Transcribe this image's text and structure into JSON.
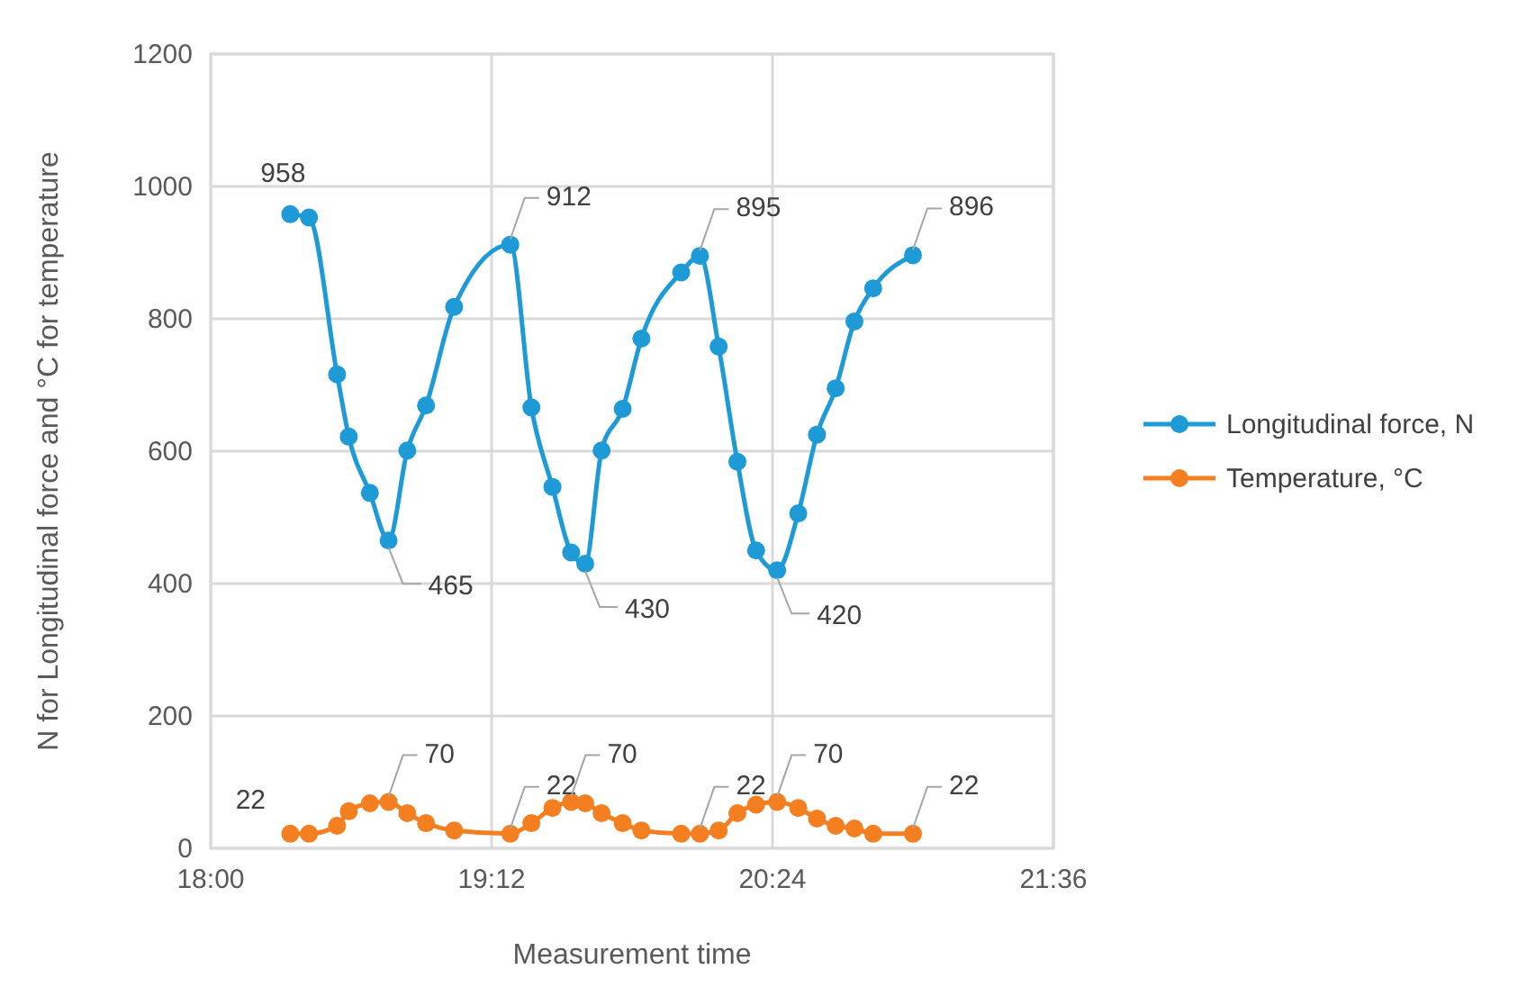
{
  "chart_data": {
    "type": "line",
    "xlabel": "Measurement time",
    "ylabel": "N for Longitudinal force and °C for temperature",
    "x": [
      18.34,
      18.42,
      18.54,
      18.59,
      18.68,
      18.76,
      18.84,
      18.92,
      19.04,
      19.28,
      19.37,
      19.46,
      19.54,
      19.6,
      19.67,
      19.76,
      19.84,
      20.01,
      20.09,
      20.17,
      20.25,
      20.33,
      20.42,
      20.51,
      20.59,
      20.67,
      20.75,
      20.83,
      21.0
    ],
    "series": [
      {
        "name": "Longitudinal force, N",
        "color": "#1e9bd7",
        "values": [
          958,
          953,
          716,
          622,
          537,
          465,
          601,
          669,
          818,
          912,
          666,
          546,
          447,
          430,
          601,
          664,
          770,
          870,
          895,
          758,
          584,
          450,
          420,
          506,
          625,
          695,
          796,
          846,
          896
        ],
        "value_labels": [
          "958",
          null,
          null,
          null,
          null,
          "465",
          null,
          null,
          null,
          "912",
          null,
          null,
          null,
          "430",
          null,
          null,
          null,
          null,
          "895",
          null,
          null,
          null,
          "420",
          null,
          null,
          null,
          null,
          null,
          "896"
        ]
      },
      {
        "name": "Temperature, °C",
        "color": "#f47f20",
        "values": [
          22,
          22,
          34,
          56,
          68,
          70,
          53,
          38,
          27,
          22,
          38,
          61,
          70,
          68,
          53,
          38,
          27,
          22,
          22,
          27,
          53,
          66,
          70,
          61,
          45,
          34,
          30,
          22,
          22
        ],
        "value_labels": [
          "22",
          null,
          null,
          null,
          null,
          "70",
          null,
          null,
          null,
          "22",
          null,
          null,
          "70",
          null,
          null,
          null,
          null,
          null,
          "22",
          null,
          null,
          null,
          "70",
          null,
          null,
          null,
          null,
          null,
          "22"
        ]
      }
    ],
    "xlim": [
      18,
      21.6
    ],
    "xticks": [
      {
        "value": 18,
        "label": "18:00"
      },
      {
        "value": 19.2,
        "label": "19:12"
      },
      {
        "value": 20.4,
        "label": "20:24"
      },
      {
        "value": 21.6,
        "label": "21:36"
      }
    ],
    "ylim": [
      0,
      1200
    ],
    "yticks": [
      0,
      200,
      400,
      600,
      800,
      1000,
      1200
    ],
    "grid": true,
    "legend": "right",
    "marker": "circle",
    "line_style": "solid"
  }
}
